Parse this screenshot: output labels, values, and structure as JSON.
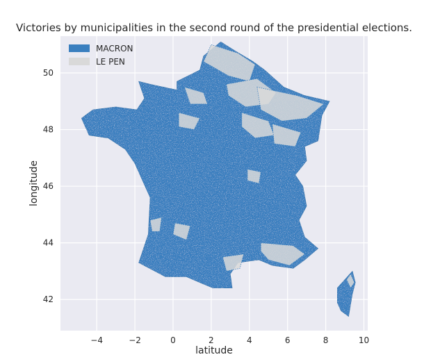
{
  "colors": {
    "macron": "#3a7fbf",
    "le_pen": "#d9d9d9",
    "plot_background": "#eaeaf2",
    "grid": "#ffffff",
    "text": "#262626"
  },
  "chart_data": {
    "type": "map",
    "title": "Victories by municipalities in the second round of the presidential elections.",
    "xlabel": "latitude",
    "ylabel": "longitude",
    "xlim": [
      -5.9,
      10.2
    ],
    "ylim": [
      40.9,
      51.3
    ],
    "xticks": [
      -4,
      -2,
      0,
      2,
      4,
      6,
      8,
      10
    ],
    "yticks": [
      42,
      44,
      46,
      48,
      50
    ],
    "xtick_labels": [
      "−4",
      "−2",
      "0",
      "2",
      "4",
      "6",
      "8",
      "10"
    ],
    "ytick_labels": [
      "42",
      "44",
      "46",
      "48",
      "50"
    ],
    "grid": true,
    "legend_position": "top-left",
    "series": [
      {
        "name": "MACRON",
        "color": "#3a7fbf"
      },
      {
        "name": "LE PEN",
        "color": "#d9d9d9"
      }
    ],
    "regions": {
      "mainland_outline": [
        [
          2.5,
          51.1
        ],
        [
          3.2,
          50.8
        ],
        [
          4.2,
          50.4
        ],
        [
          4.8,
          50.1
        ],
        [
          5.8,
          49.5
        ],
        [
          6.9,
          49.2
        ],
        [
          8.2,
          49.0
        ],
        [
          7.8,
          48.5
        ],
        [
          7.6,
          47.6
        ],
        [
          6.9,
          47.4
        ],
        [
          7.0,
          46.9
        ],
        [
          6.4,
          46.4
        ],
        [
          6.8,
          46.0
        ],
        [
          7.0,
          45.3
        ],
        [
          6.6,
          44.8
        ],
        [
          6.9,
          44.2
        ],
        [
          7.6,
          43.8
        ],
        [
          6.9,
          43.4
        ],
        [
          6.3,
          43.1
        ],
        [
          5.2,
          43.2
        ],
        [
          4.5,
          43.4
        ],
        [
          3.4,
          43.3
        ],
        [
          3.0,
          42.9
        ],
        [
          3.1,
          42.4
        ],
        [
          2.1,
          42.4
        ],
        [
          1.4,
          42.6
        ],
        [
          0.7,
          42.8
        ],
        [
          -0.4,
          42.8
        ],
        [
          -1.8,
          43.3
        ],
        [
          -1.3,
          44.3
        ],
        [
          -1.2,
          45.6
        ],
        [
          -2.0,
          46.8
        ],
        [
          -2.5,
          47.3
        ],
        [
          -3.4,
          47.7
        ],
        [
          -4.4,
          47.8
        ],
        [
          -4.8,
          48.4
        ],
        [
          -4.2,
          48.7
        ],
        [
          -3.0,
          48.8
        ],
        [
          -1.9,
          48.7
        ],
        [
          -1.5,
          49.1
        ],
        [
          -1.8,
          49.7
        ],
        [
          -1.2,
          49.6
        ],
        [
          0.2,
          49.4
        ],
        [
          0.2,
          49.7
        ],
        [
          1.4,
          50.1
        ],
        [
          1.6,
          50.6
        ],
        [
          2.5,
          51.1
        ]
      ],
      "corsica_outline": [
        [
          9.4,
          43.0
        ],
        [
          9.55,
          42.6
        ],
        [
          9.4,
          42.2
        ],
        [
          9.2,
          41.4
        ],
        [
          8.8,
          41.6
        ],
        [
          8.6,
          41.9
        ],
        [
          8.6,
          42.4
        ],
        [
          9.0,
          42.7
        ],
        [
          9.4,
          43.0
        ]
      ],
      "le_pen_zones": [
        [
          [
            2.0,
            51.0
          ],
          [
            3.4,
            50.7
          ],
          [
            4.3,
            50.3
          ],
          [
            4.0,
            49.7
          ],
          [
            2.9,
            49.9
          ],
          [
            1.6,
            50.4
          ]
        ],
        [
          [
            2.8,
            49.6
          ],
          [
            4.4,
            49.8
          ],
          [
            5.4,
            49.3
          ],
          [
            5.0,
            48.9
          ],
          [
            3.8,
            48.8
          ],
          [
            2.9,
            49.2
          ]
        ],
        [
          [
            4.4,
            49.5
          ],
          [
            6.5,
            49.2
          ],
          [
            7.9,
            48.9
          ],
          [
            7.0,
            48.4
          ],
          [
            5.7,
            48.3
          ],
          [
            4.6,
            48.7
          ]
        ],
        [
          [
            3.6,
            48.6
          ],
          [
            5.0,
            48.3
          ],
          [
            5.3,
            47.8
          ],
          [
            4.3,
            47.7
          ],
          [
            3.6,
            48.1
          ]
        ],
        [
          [
            5.2,
            48.2
          ],
          [
            6.7,
            47.9
          ],
          [
            6.4,
            47.4
          ],
          [
            5.3,
            47.5
          ]
        ],
        [
          [
            0.6,
            49.5
          ],
          [
            1.6,
            49.3
          ],
          [
            1.8,
            48.9
          ],
          [
            0.9,
            48.9
          ]
        ],
        [
          [
            0.3,
            48.6
          ],
          [
            1.4,
            48.4
          ],
          [
            1.1,
            48.0
          ],
          [
            0.3,
            48.1
          ]
        ],
        [
          [
            4.6,
            44.0
          ],
          [
            6.3,
            43.9
          ],
          [
            6.9,
            43.6
          ],
          [
            6.1,
            43.2
          ],
          [
            5.0,
            43.4
          ],
          [
            4.6,
            43.7
          ]
        ],
        [
          [
            2.6,
            43.5
          ],
          [
            3.7,
            43.6
          ],
          [
            3.5,
            43.1
          ],
          [
            2.8,
            43.0
          ]
        ],
        [
          [
            0.1,
            44.7
          ],
          [
            0.9,
            44.6
          ],
          [
            0.7,
            44.1
          ],
          [
            0.0,
            44.3
          ]
        ],
        [
          [
            -1.2,
            44.8
          ],
          [
            -0.6,
            44.9
          ],
          [
            -0.7,
            44.4
          ],
          [
            -1.1,
            44.4
          ]
        ],
        [
          [
            3.9,
            46.6
          ],
          [
            4.6,
            46.5
          ],
          [
            4.5,
            46.1
          ],
          [
            3.9,
            46.2
          ]
        ],
        [
          [
            9.3,
            42.9
          ],
          [
            9.5,
            42.6
          ],
          [
            9.3,
            42.4
          ],
          [
            9.1,
            42.7
          ]
        ]
      ]
    }
  }
}
